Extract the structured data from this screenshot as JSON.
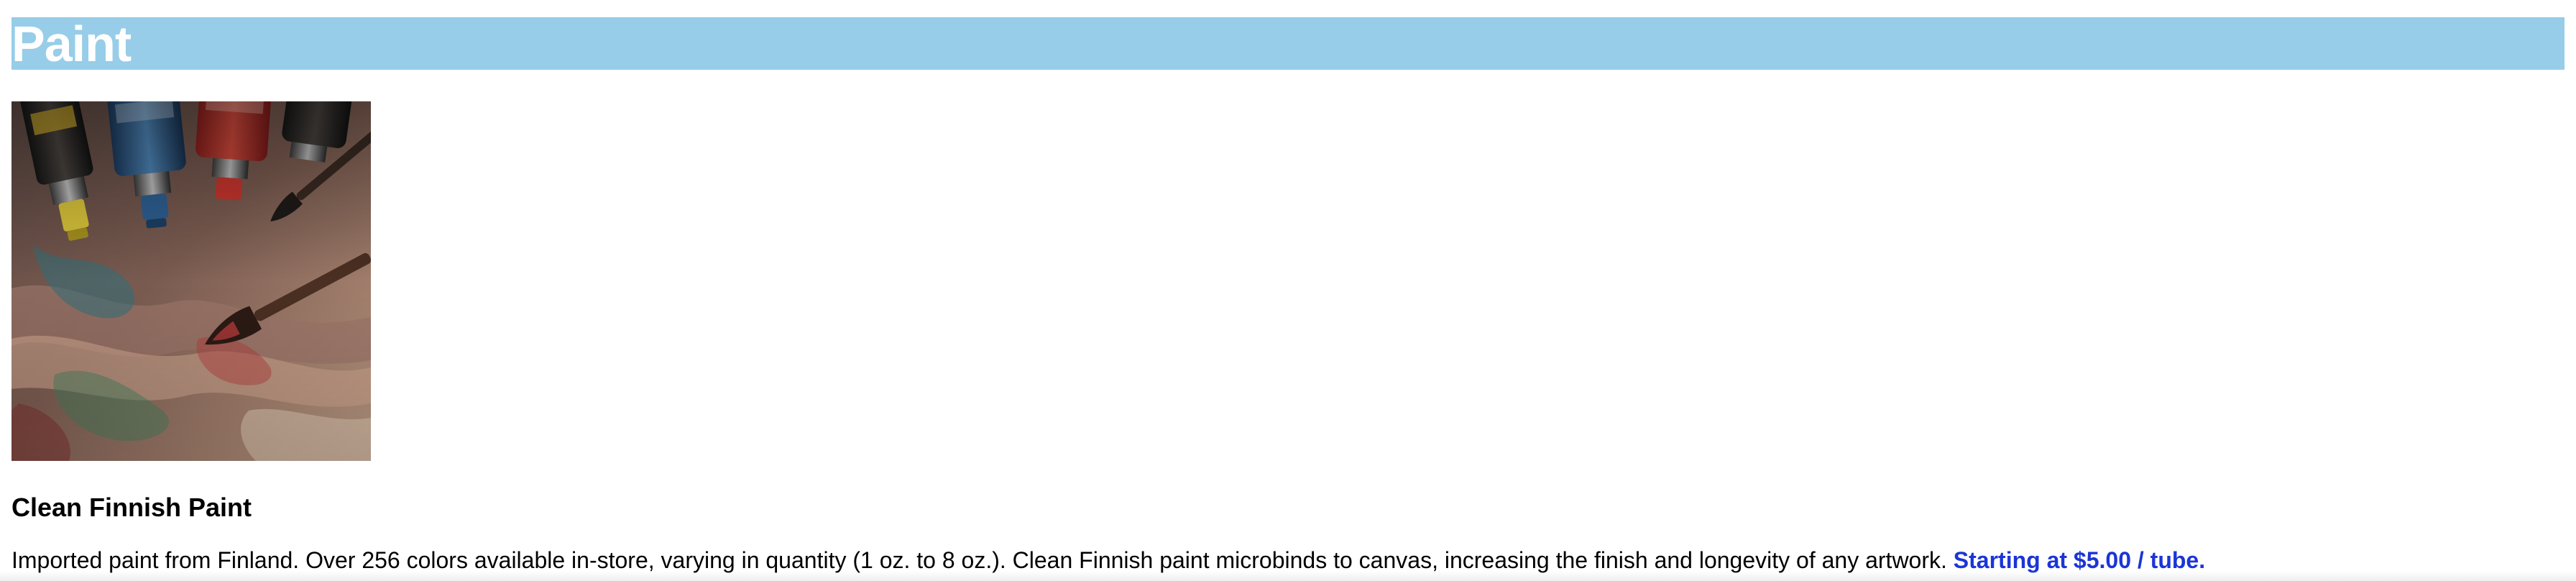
{
  "header": {
    "title": "Paint",
    "banner_color": "#97cde8"
  },
  "product": {
    "image_icon": "paint-tubes-photo",
    "name": "Clean Finnish Paint",
    "description": "Imported paint from Finland. Over 256 colors available in-store, varying in quantity (1 oz. to 8 oz.). Clean Finnish paint microbinds to canvas, increasing the finish and longevity of any artwork.",
    "price": "Starting at $5.00 / tube.",
    "price_color": "#1b35d6"
  }
}
